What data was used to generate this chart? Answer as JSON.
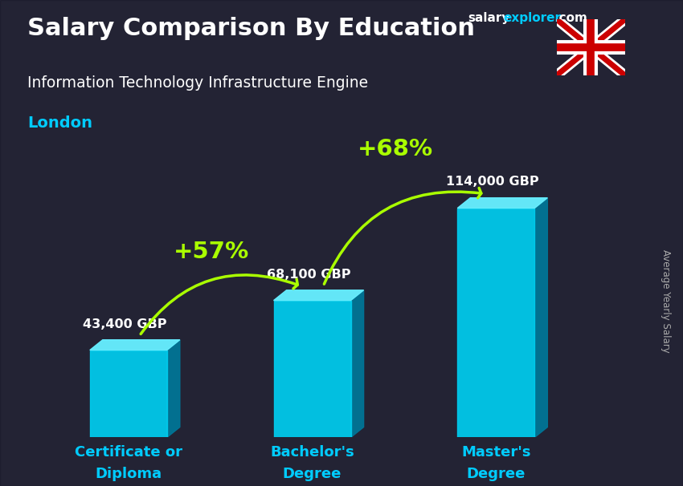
{
  "title": "Salary Comparison By Education",
  "subtitle_job": "Information Technology Infrastructure Engine",
  "subtitle_location": "London",
  "categories": [
    "Certificate or\nDiploma",
    "Bachelor's\nDegree",
    "Master's\nDegree"
  ],
  "values": [
    43400,
    68100,
    114000
  ],
  "value_labels": [
    "43,400 GBP",
    "68,100 GBP",
    "114,000 GBP"
  ],
  "pct_labels": [
    "+57%",
    "+68%"
  ],
  "bar_color_front": "#00ccee",
  "bar_color_top": "#66eeff",
  "bar_color_side": "#007799",
  "bar_width": 0.42,
  "ylabel": "Average Yearly Salary",
  "title_color": "#ffffff",
  "subtitle_job_color": "#ffffff",
  "subtitle_location_color": "#00ccff",
  "value_label_color": "#ffffff",
  "pct_color": "#aaff00",
  "arrow_color": "#aaff00",
  "xticklabel_color": "#00ccff",
  "ylabel_color": "#aaaaaa",
  "website_text1": "salary",
  "website_text2": "explorer",
  "website_text3": ".com",
  "website_color1": "#ffffff",
  "website_color2": "#00ccff",
  "website_color3": "#ffffff",
  "flag_blue": "#012169",
  "flag_red": "#CC0000",
  "figsize": [
    8.5,
    6.06
  ],
  "dpi": 100,
  "ylim_max": 145000,
  "bg_color": "#3a3a4a",
  "overlay_color": "#111122",
  "overlay_alpha": 0.55
}
